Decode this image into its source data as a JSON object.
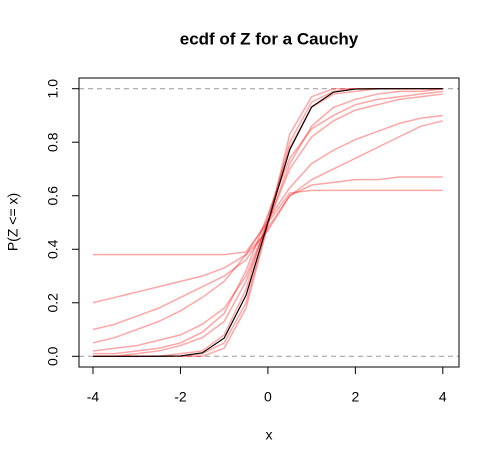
{
  "chart_data": {
    "type": "line",
    "title": "ecdf of Z for a Cauchy",
    "xlabel": "x",
    "ylabel": "P(Z <= x)",
    "x": [
      -4,
      -3.5,
      -3,
      -2.5,
      -2,
      -1.5,
      -1,
      -0.5,
      0,
      0.5,
      1,
      1.5,
      2,
      2.5,
      3,
      3.5,
      4
    ],
    "xlim": [
      -4.32,
      4.37
    ],
    "ylim": [
      -0.04,
      1.04
    ],
    "xticks": [
      -4,
      -2,
      0,
      2,
      4
    ],
    "yticks": [
      {
        "value": 0,
        "label": "0.0"
      },
      0.2,
      0.4,
      0.6,
      0.8,
      {
        "value": 1,
        "label": "1.0"
      }
    ],
    "hlines": [
      0,
      1
    ],
    "hline_color": "#999999",
    "line_opacity": 0.35,
    "series": [
      {
        "color": "#ff0000",
        "values": [
          0.38,
          0.38,
          0.38,
          0.38,
          0.38,
          0.38,
          0.38,
          0.39,
          0.5,
          0.61,
          0.62,
          0.62,
          0.62,
          0.62,
          0.62,
          0.62,
          0.62
        ]
      },
      {
        "color": "#ff0000",
        "values": [
          0.02,
          0.03,
          0.04,
          0.06,
          0.08,
          0.12,
          0.18,
          0.3,
          0.5,
          0.7,
          0.82,
          0.88,
          0.92,
          0.94,
          0.96,
          0.97,
          0.98
        ]
      },
      {
        "color": "#ff0000",
        "values": [
          0,
          0,
          0,
          0,
          0,
          0.01,
          0.05,
          0.2,
          0.5,
          0.8,
          0.95,
          0.99,
          1,
          1,
          1,
          1,
          1
        ]
      },
      {
        "color": "#ff0000",
        "values": [
          0.1,
          0.12,
          0.15,
          0.18,
          0.22,
          0.26,
          0.3,
          0.36,
          0.48,
          0.6,
          0.66,
          0.7,
          0.74,
          0.78,
          0.82,
          0.86,
          0.88
        ]
      },
      {
        "color": "#ff0000",
        "values": [
          0,
          0,
          0,
          0,
          0.01,
          0.02,
          0.08,
          0.25,
          0.52,
          0.78,
          0.93,
          0.98,
          0.99,
          1,
          1,
          1,
          1
        ]
      },
      {
        "color": "#ff0000",
        "values": [
          0.2,
          0.22,
          0.24,
          0.26,
          0.28,
          0.3,
          0.33,
          0.38,
          0.47,
          0.6,
          0.64,
          0.65,
          0.66,
          0.66,
          0.67,
          0.67,
          0.67
        ]
      },
      {
        "color": "#ff0000",
        "values": [
          0,
          0,
          0.01,
          0.02,
          0.04,
          0.07,
          0.13,
          0.28,
          0.5,
          0.72,
          0.86,
          0.93,
          0.96,
          0.98,
          0.99,
          0.99,
          1
        ]
      },
      {
        "color": "#ff0000",
        "values": [
          0.05,
          0.07,
          0.1,
          0.13,
          0.17,
          0.22,
          0.28,
          0.38,
          0.51,
          0.63,
          0.72,
          0.77,
          0.81,
          0.84,
          0.87,
          0.89,
          0.9
        ]
      },
      {
        "color": "#ff0000",
        "values": [
          0,
          0,
          0,
          0,
          0,
          0,
          0.03,
          0.18,
          0.49,
          0.83,
          0.97,
          1,
          1,
          1,
          1,
          1,
          1
        ]
      },
      {
        "color": "#ff0000",
        "values": [
          0.01,
          0.01,
          0.02,
          0.03,
          0.05,
          0.09,
          0.16,
          0.32,
          0.53,
          0.74,
          0.85,
          0.9,
          0.94,
          0.96,
          0.97,
          0.98,
          0.99
        ]
      },
      {
        "color": "#000000",
        "values": [
          0,
          0,
          0,
          0.0001,
          0.0014,
          0.013,
          0.068,
          0.228,
          0.5,
          0.772,
          0.932,
          0.987,
          0.9986,
          0.9999,
          1,
          1,
          1
        ]
      }
    ]
  }
}
